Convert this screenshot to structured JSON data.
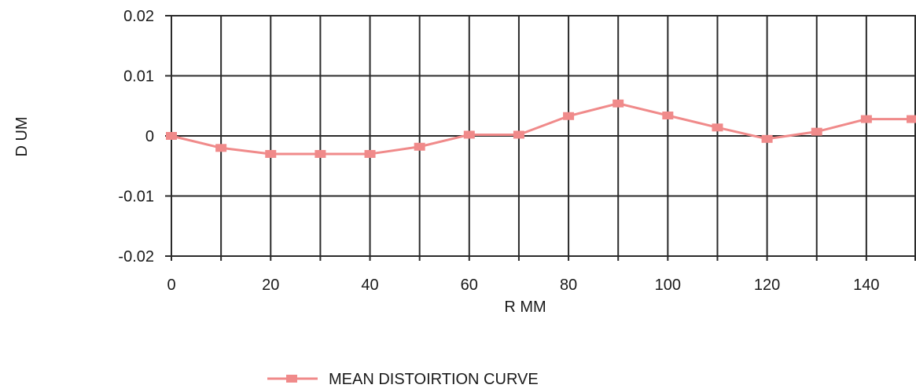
{
  "chart_data": {
    "type": "line",
    "xlabel": "R MM",
    "ylabel": "D UM",
    "xlim": [
      0,
      150
    ],
    "ylim": [
      -0.02,
      0.02
    ],
    "x_ticks": [
      0,
      20,
      40,
      60,
      80,
      100,
      120,
      140
    ],
    "x_tick_labels": [
      "0",
      "20",
      "40",
      "60",
      "80",
      "100",
      "120",
      "140"
    ],
    "y_ticks": [
      0.02,
      0.01,
      0,
      -0.01,
      -0.02
    ],
    "y_tick_labels": [
      "0.02",
      "0.01",
      "0",
      "-0.01",
      "-0.02"
    ],
    "x_gridlines": [
      0,
      10,
      20,
      30,
      40,
      50,
      60,
      70,
      80,
      90,
      100,
      110,
      120,
      130,
      140,
      150
    ],
    "y_gridlines": [
      0.02,
      0.01,
      0,
      -0.01,
      -0.02
    ],
    "grid": true,
    "legend_position": "bottom-center",
    "series": [
      {
        "name": "MEAN DISTOIRTION CURVE",
        "color": "#f08a8a",
        "x": [
          0,
          10,
          20,
          30,
          40,
          50,
          60,
          70,
          80,
          90,
          100,
          110,
          120,
          130,
          140,
          150
        ],
        "y": [
          0,
          -0.002,
          -0.003,
          -0.003,
          -0.003,
          -0.0018,
          0.0002,
          0.0002,
          0.0033,
          0.0054,
          0.0034,
          0.0014,
          -0.0005,
          0.0007,
          0.0028,
          0.0028
        ]
      }
    ]
  },
  "colors": {
    "grid": "#2b2b2b",
    "series": "#f08a8a"
  }
}
